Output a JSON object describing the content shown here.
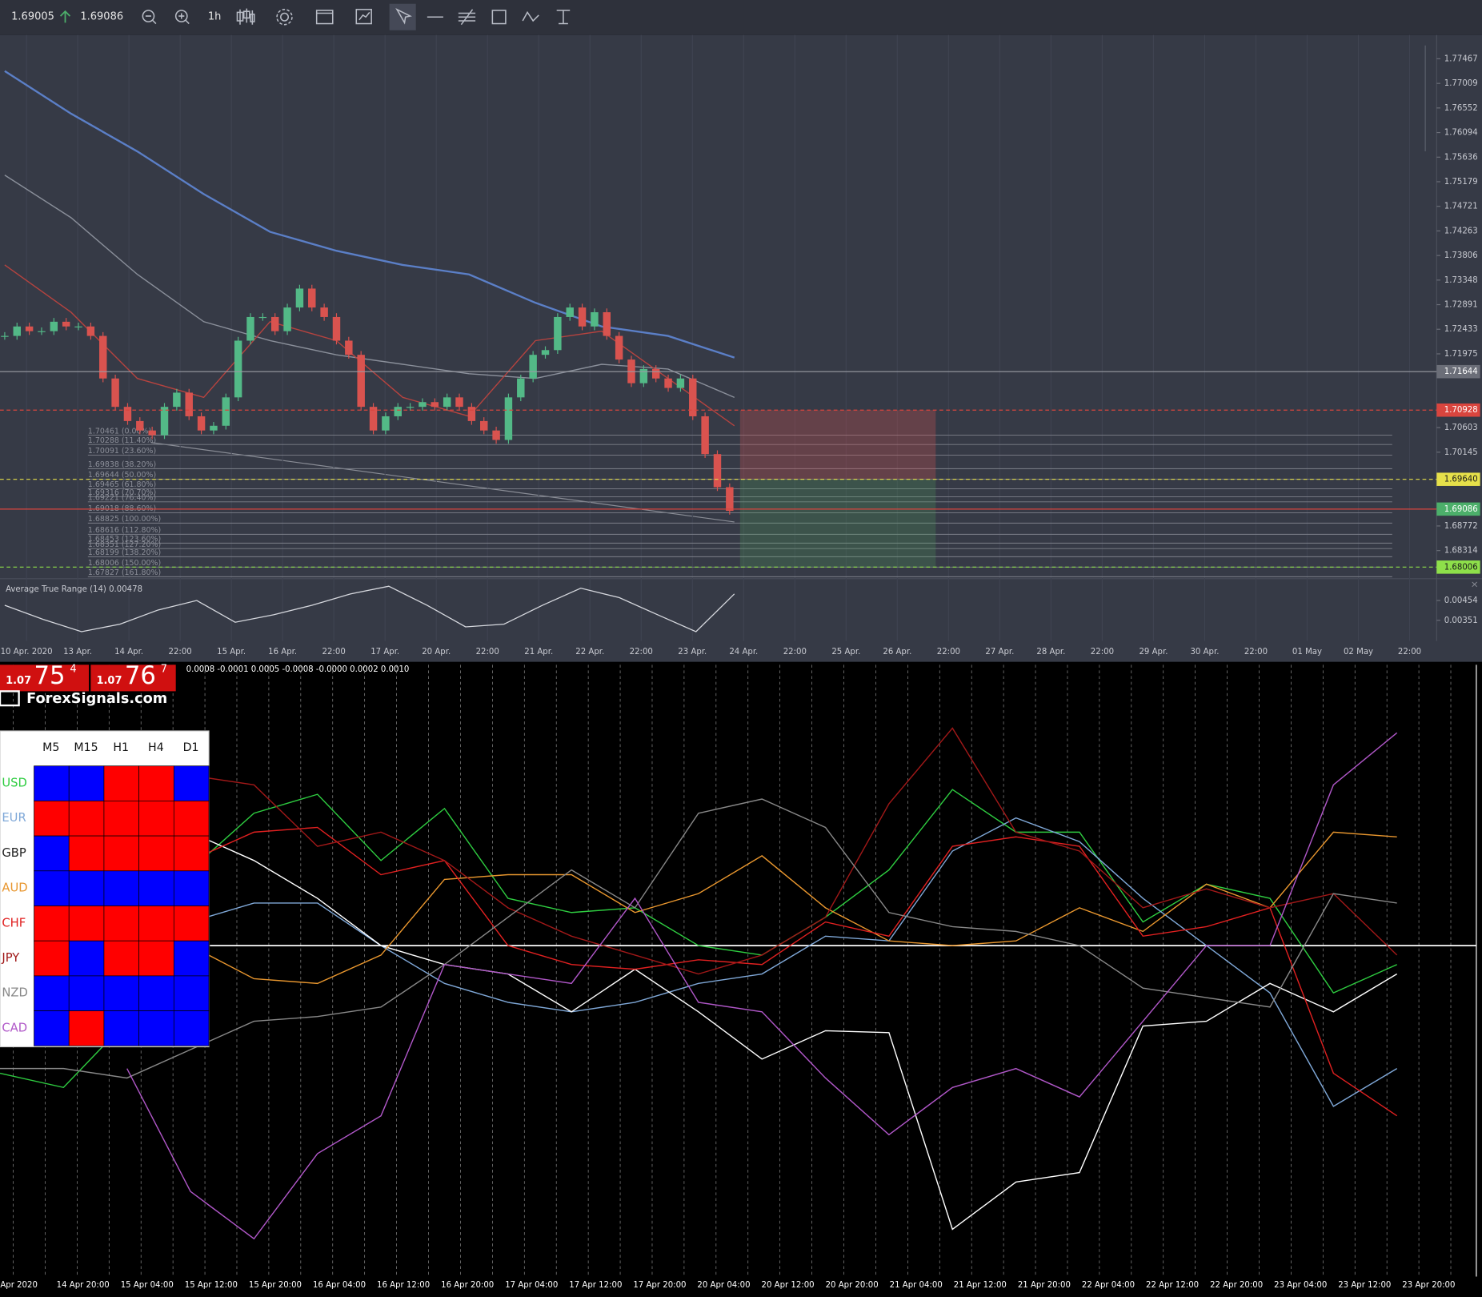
{
  "toolbar": {
    "bid": "1.69005",
    "ask": "1.69086",
    "timeframe": "1h"
  },
  "chart_data": [
    {
      "type": "candlestick",
      "x_tick_labels": [
        "10 Apr. 2020",
        "13 Apr.",
        "14 Apr.",
        "22:00",
        "15 Apr.",
        "16 Apr.",
        "22:00",
        "17 Apr.",
        "20 Apr.",
        "22:00",
        "21 Apr.",
        "22 Apr.",
        "22:00",
        "23 Apr.",
        "24 Apr.",
        "22:00",
        "25 Apr.",
        "26 Apr.",
        "22:00",
        "27 Apr.",
        "28 Apr.",
        "22:00",
        "29 Apr.",
        "30 Apr.",
        "22:00",
        "01 May",
        "02 May",
        "22:00"
      ],
      "ylim": [
        1.6779,
        1.7791
      ],
      "yticks": [
        1.77467,
        1.77009,
        1.76552,
        1.76094,
        1.75636,
        1.75179,
        1.74721,
        1.74263,
        1.73806,
        1.73348,
        1.72891,
        1.72433,
        1.71975,
        1.70603,
        1.70145,
        1.68772,
        1.68314
      ],
      "up_color": "#53b987",
      "down_color": "#d9534f",
      "values": [
        1.72309,
        1.72485,
        1.72397,
        1.72397,
        1.72573,
        1.72485,
        1.72485,
        1.72309,
        1.71517,
        1.70989,
        1.70725,
        1.70549,
        1.70461,
        1.70989,
        1.71253,
        1.70813,
        1.70549,
        1.70637,
        1.71165,
        1.72221,
        1.72661,
        1.72661,
        1.72397,
        1.72838,
        1.7319,
        1.72838,
        1.72661,
        1.72221,
        1.71957,
        1.70989,
        1.70549,
        1.70813,
        1.70989,
        1.70989,
        1.71077,
        1.70989,
        1.71165,
        1.70989,
        1.70725,
        1.70549,
        1.70373,
        1.71165,
        1.71517,
        1.71957,
        1.72045,
        1.72661,
        1.72838,
        1.72485,
        1.7275,
        1.72309,
        1.71869,
        1.71429,
        1.71693,
        1.71517,
        1.71341,
        1.71517,
        1.70813,
        1.70109,
        1.69493,
        1.69053
      ],
      "overlays": [
        {
          "color": "#5b7fc7",
          "values": [
            1.77238,
            1.76446,
            1.75742,
            1.7495,
            1.74246,
            1.73894,
            1.7363,
            1.73454,
            1.72926,
            1.72485,
            1.72309,
            1.71905
          ]
        },
        {
          "color": "#8a8f9a",
          "values": [
            1.75302,
            1.7451,
            1.73454,
            1.72574,
            1.72221,
            1.71957,
            1.71781,
            1.71605,
            1.71517,
            1.71781,
            1.71693,
            1.71165
          ]
        },
        {
          "color": "#b5433f",
          "values": [
            1.7363,
            1.7275,
            1.71517,
            1.71165,
            1.72574,
            1.72221,
            1.71165,
            1.70813,
            1.72221,
            1.72397,
            1.71517,
            1.70637
          ]
        }
      ],
      "price_lines": [
        {
          "value": 1.71644,
          "color": "#9a9ca4",
          "label_color": "#6b6e78",
          "dashed": false
        },
        {
          "value": 1.70928,
          "color": "#d9453e",
          "label_color": "#d9453e",
          "dashed": true
        },
        {
          "value": 1.6964,
          "label": "1.69640",
          "color": "#e6e04a",
          "label_color": "#e6e04a",
          "dashed": true
        },
        {
          "value": 1.69086,
          "color": "#d9453e",
          "label_color": "#4caf6a",
          "dashed": false
        },
        {
          "value": 1.68006,
          "color": "#8ee04a",
          "label_color": "#8ee04a",
          "dashed": true
        }
      ],
      "fib_levels": [
        {
          "value": 1.70461,
          "label": "1.70461 (0.00%)"
        },
        {
          "value": 1.70288,
          "label": "1.70288 (11.40%)"
        },
        {
          "value": 1.70091,
          "label": "1.70091 (23.60%)"
        },
        {
          "value": 1.69838,
          "label": "1.69838 (38.20%)"
        },
        {
          "value": 1.69644,
          "label": "1.69644 (50.00%)"
        },
        {
          "value": 1.69465,
          "label": "1.69465 (61.80%)"
        },
        {
          "value": 1.69316,
          "label": "1.69316 (70.70%)"
        },
        {
          "value": 1.69221,
          "label": "1.69221 (76.40%)"
        },
        {
          "value": 1.69018,
          "label": "1.69018 (88.60%)"
        },
        {
          "value": 1.68825,
          "label": "1.68825 (100.00%)"
        },
        {
          "value": 1.68616,
          "label": "1.68616 (112.80%)"
        },
        {
          "value": 1.68453,
          "label": "1.68453 (123.60%)"
        },
        {
          "value": 1.68351,
          "label": "1.68351 (127.20%)"
        },
        {
          "value": 1.68199,
          "label": "1.68199 (138.20%)"
        },
        {
          "value": 1.68006,
          "label": "1.68006 (150.00%)"
        },
        {
          "value": 1.67827,
          "label": "1.67827 (161.80%)"
        }
      ]
    },
    {
      "type": "line",
      "title": "Average True Range (14) 0.00478",
      "ylim": [
        0.00243,
        0.00567
      ],
      "yticks": [
        0.00454,
        0.00351
      ],
      "color": "#d6d8de",
      "values": [
        0.00429,
        0.00356,
        0.00292,
        0.00331,
        0.00405,
        0.00454,
        0.00341,
        0.0038,
        0.00429,
        0.00488,
        0.00528,
        0.00429,
        0.00317,
        0.00331,
        0.00429,
        0.00518,
        0.00469,
        0.0038,
        0.00292,
        0.00488
      ]
    },
    {
      "type": "line",
      "header": "0.0008 -0.0001 0.0005 -0.0008 -0.0000 0.0002 0.0010",
      "x_tick_labels": [
        "Apr 2020",
        "14 Apr 20:00",
        "15 Apr 04:00",
        "15 Apr 12:00",
        "15 Apr 20:00",
        "16 Apr 04:00",
        "16 Apr 12:00",
        "16 Apr 20:00",
        "17 Apr 04:00",
        "17 Apr 12:00",
        "17 Apr 20:00",
        "20 Apr 04:00",
        "20 Apr 12:00",
        "20 Apr 20:00",
        "21 Apr 04:00",
        "21 Apr 12:00",
        "21 Apr 20:00",
        "22 Apr 04:00",
        "22 Apr 12:00",
        "22 Apr 20:00",
        "23 Apr 04:00",
        "23 Apr 12:00",
        "23 Apr 20:00"
      ],
      "ylim": [
        -3.5,
        3.0
      ],
      "zero_line": true,
      "series": [
        {
          "name": "USD",
          "color": "#2ecc40",
          "values": [
            -1.35,
            -1.5,
            -0.8,
            0.8,
            1.4,
            1.6,
            0.9,
            1.45,
            0.5,
            0.35,
            0.4,
            0.0,
            -0.1,
            0.3,
            0.8,
            1.65,
            1.2,
            1.2,
            0.25,
            0.65,
            0.5,
            -0.5,
            -0.2
          ]
        },
        {
          "name": "EUR",
          "color": "#7fa8d8",
          "values": [
            null,
            null,
            null,
            0.25,
            0.45,
            0.45,
            0.0,
            -0.4,
            -0.6,
            -0.7,
            -0.6,
            -0.4,
            -0.3,
            0.1,
            0.05,
            1.0,
            1.35,
            1.1,
            0.5,
            0.0,
            -0.5,
            -1.7,
            -1.3
          ]
        },
        {
          "name": "GBP",
          "color": "#ffffff",
          "label_color": "#222222",
          "values": [
            0.0,
            0.2,
            0.7,
            1.2,
            0.9,
            0.5,
            0.0,
            -0.2,
            -0.3,
            -0.7,
            -0.25,
            -0.7,
            -1.2,
            -0.9,
            -0.92,
            -3.0,
            -2.5,
            -2.4,
            -0.85,
            -0.8,
            -0.4,
            -0.7,
            -0.3
          ]
        },
        {
          "name": "AUD",
          "color": "#e8962e",
          "values": [
            null,
            null,
            null,
            0.0,
            -0.35,
            -0.4,
            -0.1,
            0.7,
            0.75,
            0.75,
            0.35,
            0.55,
            0.95,
            0.4,
            0.05,
            0.0,
            0.05,
            0.4,
            0.15,
            0.65,
            0.4,
            1.2,
            1.15
          ]
        },
        {
          "name": "CHF",
          "color": "#e02020",
          "values": [
            null,
            null,
            null,
            0.9,
            1.2,
            1.25,
            0.75,
            0.9,
            0.0,
            -0.2,
            -0.25,
            -0.15,
            -0.2,
            0.25,
            0.1,
            1.05,
            1.15,
            1.05,
            0.1,
            0.2,
            0.4,
            -1.35,
            -1.8
          ]
        },
        {
          "name": "JPY",
          "color": "#a01818",
          "values": [
            null,
            null,
            null,
            1.8,
            1.7,
            1.05,
            1.2,
            0.9,
            0.4,
            0.1,
            -0.1,
            -0.3,
            -0.1,
            0.3,
            1.5,
            2.3,
            1.2,
            1.0,
            0.4,
            0.6,
            0.4,
            0.55,
            -0.1
          ]
        },
        {
          "name": "NZD",
          "color": "#888888",
          "values": [
            -1.3,
            -1.3,
            -1.4,
            -1.1,
            -0.8,
            -0.75,
            -0.65,
            -0.2,
            0.3,
            0.8,
            0.4,
            1.4,
            1.55,
            1.25,
            0.35,
            0.2,
            0.15,
            0.0,
            -0.45,
            -0.55,
            -0.65,
            0.55,
            0.45
          ]
        },
        {
          "name": "CAD",
          "color": "#b057c8",
          "values": [
            null,
            null,
            -1.3,
            -2.6,
            -3.1,
            -2.2,
            -1.8,
            -0.2,
            -0.3,
            -0.4,
            0.5,
            -0.6,
            -0.7,
            -1.4,
            -2.0,
            -1.5,
            -1.3,
            -1.6,
            -0.8,
            0.0,
            0.0,
            1.7,
            2.25
          ]
        }
      ]
    }
  ],
  "strength_widget": {
    "quotes": [
      {
        "figure": "1.07",
        "pips": "75",
        "fraction": "4"
      },
      {
        "figure": "1.07",
        "pips": "76",
        "fraction": "7"
      }
    ],
    "logo": "ForexSignals.com",
    "columns": [
      "M5",
      "M15",
      "H1",
      "H4",
      "D1"
    ],
    "cells": [
      [
        "#0000ff",
        "#0000ff",
        "#ff0000",
        "#ff0000",
        "#0000ff"
      ],
      [
        "#ff0000",
        "#ff0000",
        "#ff0000",
        "#ff0000",
        "#ff0000"
      ],
      [
        "#0000ff",
        "#ff0000",
        "#ff0000",
        "#ff0000",
        "#ff0000"
      ],
      [
        "#0000ff",
        "#0000ff",
        "#0000ff",
        "#0000ff",
        "#0000ff"
      ],
      [
        "#ff0000",
        "#ff0000",
        "#ff0000",
        "#ff0000",
        "#ff0000"
      ],
      [
        "#ff0000",
        "#0000ff",
        "#ff0000",
        "#ff0000",
        "#0000ff"
      ],
      [
        "#0000ff",
        "#0000ff",
        "#0000ff",
        "#0000ff",
        "#0000ff"
      ],
      [
        "#0000ff",
        "#ff0000",
        "#0000ff",
        "#0000ff",
        "#0000ff"
      ]
    ]
  }
}
